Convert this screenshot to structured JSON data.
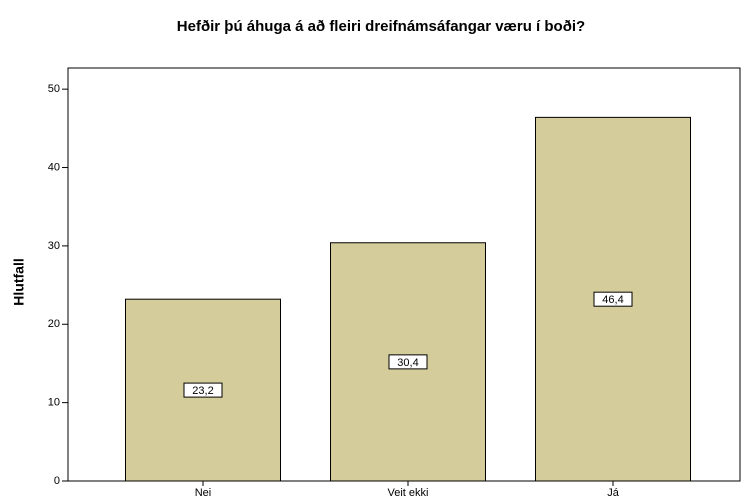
{
  "chart_data": {
    "type": "bar",
    "title": "Hefðir þú áhuga á að fleiri dreifnámsáfangar væru í boði?",
    "ylabel": "Hlutfall",
    "categories": [
      "Nei",
      "Veit ekki",
      "Já"
    ],
    "values": [
      23.2,
      30.4,
      46.4
    ],
    "value_labels": [
      "23,2",
      "30,4",
      "46,4"
    ],
    "color": "#d4cc9a",
    "ylim": [
      0,
      52.7
    ],
    "yticks": [
      0,
      10,
      20,
      30,
      40,
      50
    ],
    "grid": false
  }
}
